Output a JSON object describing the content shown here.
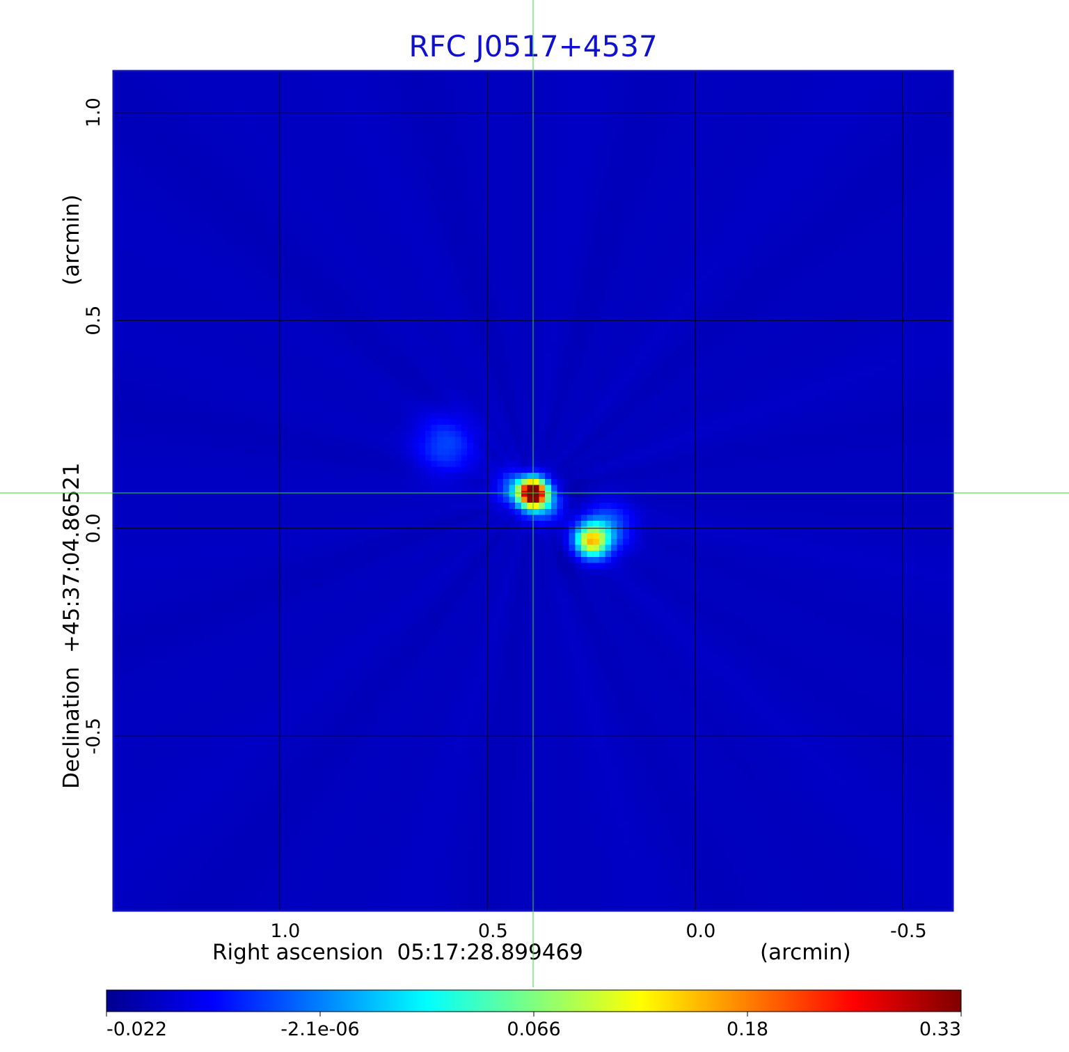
{
  "chart_data": {
    "type": "heatmap",
    "title": "RFC J0517+4537",
    "xlabel": "Right ascension  05:17:28.899469",
    "xunit": "(arcmin)",
    "ylabel": "Declination  +45:37:04.86521",
    "yunit": "(arcmin)",
    "xlim": [
      1.4,
      -0.62
    ],
    "ylim": [
      -0.92,
      1.1
    ],
    "xticks": [
      1.0,
      0.5,
      0.0,
      -0.5
    ],
    "xtick_labels": [
      "1.0",
      "0.5",
      "0.0",
      "-0.5"
    ],
    "yticks": [
      1.0,
      0.5,
      0.0,
      -0.5
    ],
    "ytick_labels": [
      "1.0",
      "0.5",
      "0.0",
      "-0.5"
    ],
    "grid": true,
    "crosshair": {
      "x": 0.39,
      "y": 0.085
    },
    "colorbar": {
      "colormap": "jet",
      "ticks": [
        -0.022,
        -2.1e-06,
        0.066,
        0.18,
        0.33
      ],
      "tick_labels": [
        "-0.022",
        "-2.1e-06",
        "0.066",
        "0.18",
        "0.33"
      ],
      "vmin": -0.022,
      "vmax": 0.33
    },
    "background_level": 0.0,
    "features": [
      {
        "x": 0.39,
        "y": 0.085,
        "value": 0.33,
        "sigma": 0.022
      },
      {
        "x": 0.42,
        "y": 0.09,
        "value": 0.09,
        "sigma": 0.035
      },
      {
        "x": 0.36,
        "y": 0.06,
        "value": 0.07,
        "sigma": 0.03
      },
      {
        "x": 0.25,
        "y": -0.03,
        "value": 0.2,
        "sigma": 0.028
      },
      {
        "x": 0.21,
        "y": 0.0,
        "value": 0.06,
        "sigma": 0.04
      },
      {
        "x": 0.6,
        "y": 0.2,
        "value": 0.045,
        "sigma": 0.05
      },
      {
        "x": 0.41,
        "y": 0.135,
        "value": -0.022,
        "sigma": 0.02
      },
      {
        "x": 0.44,
        "y": 0.05,
        "value": -0.018,
        "sigma": 0.02
      },
      {
        "x": 0.3,
        "y": 0.08,
        "value": -0.01,
        "sigma": 0.03
      },
      {
        "x": 0.3,
        "y": -0.07,
        "value": -0.008,
        "sigma": 0.03
      }
    ],
    "colors": {
      "title": "#1010d0",
      "frame": "#1010c0",
      "grid": "#000000",
      "crosshair": "#33dd33"
    }
  }
}
